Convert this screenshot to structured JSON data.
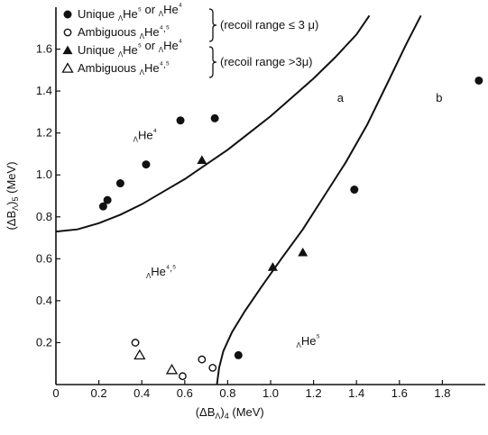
{
  "chart_data": {
    "type": "scatter",
    "xlabel": "(ΔB_Λ)_4 (MeV)",
    "ylabel": "(ΔB_Λ)_5 (MeV)",
    "xlim": [
      0,
      2.0
    ],
    "ylim": [
      0,
      1.8
    ],
    "x_ticks": [
      0,
      0.2,
      0.4,
      0.6,
      0.8,
      1.0,
      1.2,
      1.4,
      1.6,
      1.8
    ],
    "x_tick_labels": [
      "0",
      "0.2",
      "0.4",
      "0.6",
      "0.8",
      "1.0",
      "1.2",
      "1.4",
      "1.6",
      "1.8"
    ],
    "y_ticks": [
      0.2,
      0.4,
      0.6,
      0.8,
      1.0,
      1.2,
      1.4,
      1.6
    ],
    "y_tick_labels": [
      "0.2",
      "0.4",
      "0.6",
      "0.8",
      "1.0",
      "1.2",
      "1.4",
      "1.6"
    ],
    "grid": false,
    "legend_position": "top-left",
    "legend": [
      {
        "marker": "filled-circle",
        "text": "Unique ΛHe⁵ or ΛHe⁴"
      },
      {
        "marker": "open-circle",
        "text": "Ambiguous ΛHe⁴,⁵"
      },
      {
        "marker": "filled-triangle",
        "text": "Unique ΛHe⁵ or ΛHe⁴"
      },
      {
        "marker": "open-triangle",
        "text": "Ambiguous ΛHe⁴,⁵"
      }
    ],
    "legend_braces": [
      "(recoil range ≤ 3 μ)",
      "(recoil range >3μ)"
    ],
    "series": [
      {
        "marker": "filled-circle",
        "points": [
          [
            0.22,
            0.85
          ],
          [
            0.24,
            0.88
          ],
          [
            0.3,
            0.96
          ],
          [
            0.42,
            1.05
          ],
          [
            0.58,
            1.26
          ],
          [
            0.74,
            1.27
          ],
          [
            0.85,
            0.14
          ],
          [
            1.39,
            0.93
          ],
          [
            1.97,
            1.45
          ]
        ]
      },
      {
        "marker": "open-circle",
        "points": [
          [
            0.37,
            0.2
          ],
          [
            0.59,
            0.04
          ],
          [
            0.68,
            0.12
          ],
          [
            0.73,
            0.08
          ]
        ]
      },
      {
        "marker": "filled-triangle",
        "points": [
          [
            0.68,
            1.07
          ],
          [
            1.01,
            0.56
          ],
          [
            1.15,
            0.63
          ]
        ]
      },
      {
        "marker": "open-triangle",
        "points": [
          [
            0.39,
            0.14
          ],
          [
            0.54,
            0.07
          ]
        ]
      }
    ],
    "curves": [
      {
        "label": "a",
        "points": [
          [
            0,
            0.73
          ],
          [
            0.1,
            0.74
          ],
          [
            0.2,
            0.77
          ],
          [
            0.3,
            0.81
          ],
          [
            0.4,
            0.86
          ],
          [
            0.5,
            0.92
          ],
          [
            0.6,
            0.98
          ],
          [
            0.7,
            1.05
          ],
          [
            0.8,
            1.12
          ],
          [
            0.9,
            1.2
          ],
          [
            1.0,
            1.28
          ],
          [
            1.1,
            1.37
          ],
          [
            1.2,
            1.46
          ],
          [
            1.3,
            1.56
          ],
          [
            1.4,
            1.67
          ],
          [
            1.46,
            1.76
          ]
        ]
      },
      {
        "label": "b",
        "points": [
          [
            0.75,
            0.0
          ],
          [
            0.76,
            0.08
          ],
          [
            0.78,
            0.16
          ],
          [
            0.82,
            0.25
          ],
          [
            0.88,
            0.35
          ],
          [
            0.96,
            0.47
          ],
          [
            1.05,
            0.6
          ],
          [
            1.15,
            0.74
          ],
          [
            1.25,
            0.9
          ],
          [
            1.35,
            1.06
          ],
          [
            1.45,
            1.24
          ],
          [
            1.55,
            1.45
          ],
          [
            1.63,
            1.62
          ],
          [
            1.7,
            1.76
          ]
        ]
      }
    ],
    "annotations": [
      {
        "text": "a",
        "x": 1.31,
        "y": 1.35
      },
      {
        "text": "b",
        "x": 1.77,
        "y": 1.35
      }
    ],
    "region_labels": [
      {
        "text": "ΛHe⁴",
        "x": 0.36,
        "y": 1.17
      },
      {
        "text": "ΛHe⁴,⁵",
        "x": 0.42,
        "y": 0.52
      },
      {
        "text": "ΛHe⁵",
        "x": 1.12,
        "y": 0.19
      }
    ]
  }
}
